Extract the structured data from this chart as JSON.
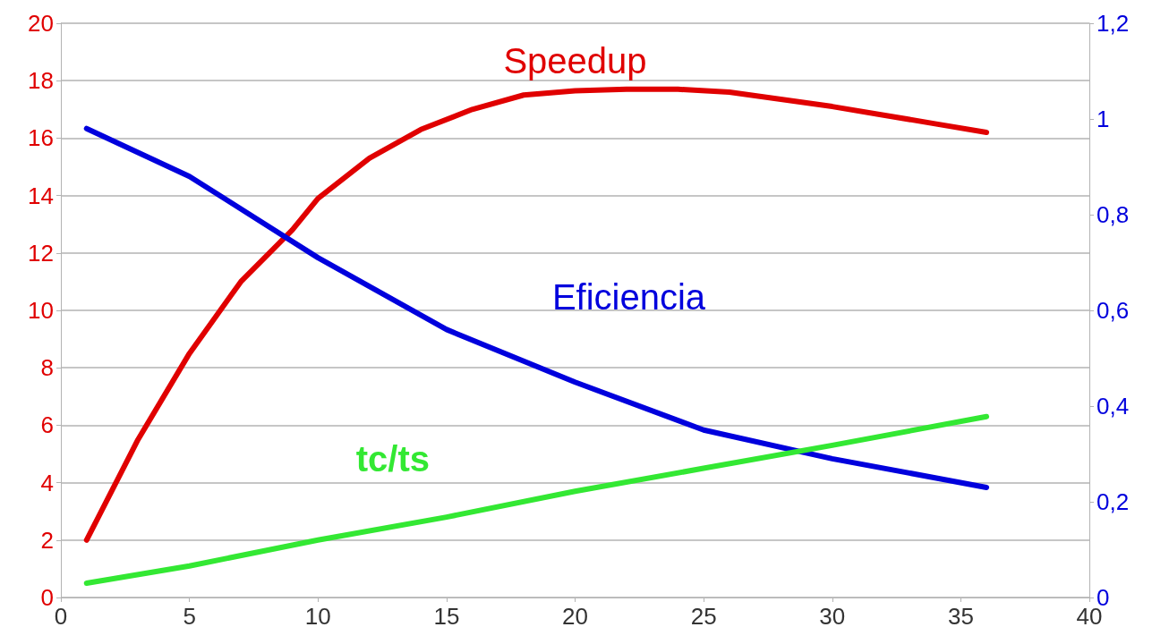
{
  "chart_data": {
    "type": "line",
    "grid": "y",
    "legend": false,
    "marker": "none",
    "line_style": "solid",
    "xlim": [
      0,
      40
    ],
    "xticks": [
      0,
      5,
      10,
      15,
      20,
      25,
      30,
      35,
      40
    ],
    "ylim": [
      0,
      20
    ],
    "yticks": [
      0,
      2,
      4,
      6,
      8,
      10,
      12,
      14,
      16,
      18,
      20
    ],
    "y2lim": [
      0,
      1.2
    ],
    "y2ticks": [
      {
        "value": 0,
        "label": "0"
      },
      {
        "value": 0.2,
        "label": "0,2"
      },
      {
        "value": 0.4,
        "label": "0,4"
      },
      {
        "value": 0.6,
        "label": "0,6"
      },
      {
        "value": 0.8,
        "label": "0,8"
      },
      {
        "value": 1,
        "label": "1"
      },
      {
        "value": 1.2,
        "label": "1,2"
      }
    ],
    "series": [
      {
        "name": "Speedup",
        "color": "#e00000",
        "x": [
          1,
          3,
          5,
          7,
          9,
          10,
          12,
          14,
          16,
          18,
          20,
          22,
          24,
          26,
          28,
          30,
          32,
          34,
          36
        ],
        "values": [
          2.0,
          5.5,
          8.5,
          11,
          12.8,
          13.9,
          15.3,
          16.3,
          17.0,
          17.5,
          17.65,
          17.7,
          17.7,
          17.6,
          17.35,
          17.1,
          16.8,
          16.5,
          16.2
        ]
      },
      {
        "name": "Eficiencia",
        "color": "#0000dd",
        "axis": "y2",
        "x": [
          1,
          5,
          10,
          15,
          20,
          25,
          30,
          36
        ],
        "values": [
          0.98,
          0.88,
          0.71,
          0.56,
          0.45,
          0.35,
          0.29,
          0.23
        ]
      },
      {
        "name": "tc/ts",
        "color": "#33e833",
        "x": [
          1,
          5,
          10,
          15,
          20,
          25,
          30,
          36
        ],
        "values": [
          0.5,
          1.1,
          2.0,
          2.8,
          3.7,
          4.5,
          5.3,
          6.3
        ]
      }
    ]
  }
}
